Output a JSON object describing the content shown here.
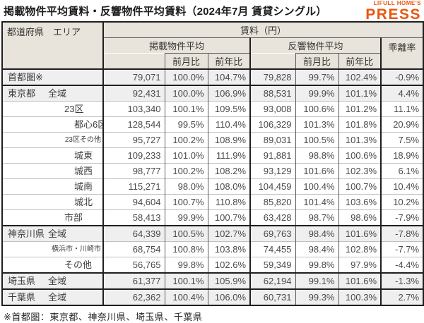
{
  "title": "掲載物件平均賃料・反響物件平均賃料（2024年7月 賃貸シングル）",
  "logo": {
    "top_text": "LIFULL HOME'S",
    "main_text": "PRESS",
    "color": "#e8570f"
  },
  "footnote": "※首都圏：東京都、神奈川県、埼玉県、千葉県",
  "table": {
    "header": {
      "area_label": "都道府県　エリア",
      "rent_label": "賃料（円）",
      "listed_group": "掲載物件平均",
      "inquiry_group": "反響物件平均",
      "mom": "前月比",
      "yoy": "前年比",
      "divergence": "乖離率"
    },
    "columns": [
      "エリア",
      "掲載物件平均",
      "掲載前月比",
      "掲載前年比",
      "反響物件平均",
      "反響前月比",
      "反響前年比",
      "乖離率"
    ],
    "rows": [
      {
        "pref": "首都圏※",
        "area": "",
        "indent": 0,
        "shaded": true,
        "section_start": true,
        "small": false,
        "cells": [
          "79,071",
          "100.0%",
          "104.7%",
          "79,828",
          "99.7%",
          "102.4%",
          "-0.9%"
        ]
      },
      {
        "pref": "東京都",
        "area": "全域",
        "indent": 0,
        "shaded": true,
        "section_start": true,
        "small": false,
        "cells": [
          "92,431",
          "100.0%",
          "106.9%",
          "88,531",
          "99.9%",
          "101.1%",
          "4.4%"
        ]
      },
      {
        "pref": "",
        "area": "23区",
        "indent": 1,
        "shaded": false,
        "section_start": false,
        "small": false,
        "cells": [
          "103,340",
          "100.1%",
          "109.5%",
          "93,008",
          "100.6%",
          "101.2%",
          "11.1%"
        ]
      },
      {
        "pref": "",
        "area": "都心6区",
        "indent": 2,
        "shaded": false,
        "section_start": false,
        "small": false,
        "cells": [
          "128,544",
          "99.5%",
          "110.4%",
          "106,329",
          "101.3%",
          "101.8%",
          "20.9%"
        ]
      },
      {
        "pref": "",
        "area": "23区その他",
        "indent": 2,
        "shaded": false,
        "section_start": false,
        "small": true,
        "cells": [
          "95,727",
          "100.2%",
          "108.9%",
          "89,031",
          "100.5%",
          "101.3%",
          "7.5%"
        ]
      },
      {
        "pref": "",
        "area": "城東",
        "indent": 2,
        "shaded": false,
        "section_start": false,
        "small": false,
        "cells": [
          "109,233",
          "101.0%",
          "111.9%",
          "91,881",
          "98.8%",
          "100.6%",
          "18.9%"
        ]
      },
      {
        "pref": "",
        "area": "城西",
        "indent": 2,
        "shaded": false,
        "section_start": false,
        "small": false,
        "cells": [
          "98,777",
          "100.2%",
          "108.2%",
          "93,129",
          "101.6%",
          "102.3%",
          "6.1%"
        ]
      },
      {
        "pref": "",
        "area": "城南",
        "indent": 2,
        "shaded": false,
        "section_start": false,
        "small": false,
        "cells": [
          "115,271",
          "98.0%",
          "108.0%",
          "104,459",
          "100.4%",
          "100.7%",
          "10.4%"
        ]
      },
      {
        "pref": "",
        "area": "城北",
        "indent": 2,
        "shaded": false,
        "section_start": false,
        "small": false,
        "cells": [
          "94,604",
          "100.7%",
          "110.8%",
          "85,820",
          "101.4%",
          "103.6%",
          "10.2%"
        ]
      },
      {
        "pref": "",
        "area": "市部",
        "indent": 1,
        "shaded": false,
        "section_start": false,
        "small": false,
        "cells": [
          "58,413",
          "99.9%",
          "100.7%",
          "63,428",
          "98.7%",
          "98.6%",
          "-7.9%"
        ]
      },
      {
        "pref": "神奈川県",
        "area": "全域",
        "indent": 0,
        "shaded": true,
        "section_start": true,
        "small": false,
        "cells": [
          "64,339",
          "100.5%",
          "102.7%",
          "69,763",
          "98.4%",
          "101.6%",
          "-7.8%"
        ]
      },
      {
        "pref": "",
        "area": "横浜市・川崎市",
        "indent": 1,
        "shaded": false,
        "section_start": false,
        "small": true,
        "cells": [
          "68,754",
          "100.8%",
          "103.8%",
          "74,455",
          "98.4%",
          "102.8%",
          "-7.7%"
        ]
      },
      {
        "pref": "",
        "area": "その他",
        "indent": 1,
        "shaded": false,
        "section_start": false,
        "small": false,
        "cells": [
          "56,765",
          "99.8%",
          "102.6%",
          "59,349",
          "99.8%",
          "97.9%",
          "-4.4%"
        ]
      },
      {
        "pref": "埼玉県",
        "area": "全域",
        "indent": 0,
        "shaded": true,
        "section_start": true,
        "small": false,
        "cells": [
          "61,377",
          "100.1%",
          "105.9%",
          "62,194",
          "99.1%",
          "101.6%",
          "-1.3%"
        ]
      },
      {
        "pref": "千葉県",
        "area": "全域",
        "indent": 0,
        "shaded": true,
        "section_start": true,
        "small": false,
        "cells": [
          "62,362",
          "100.4%",
          "106.0%",
          "60,731",
          "99.3%",
          "100.3%",
          "2.7%"
        ]
      }
    ]
  }
}
